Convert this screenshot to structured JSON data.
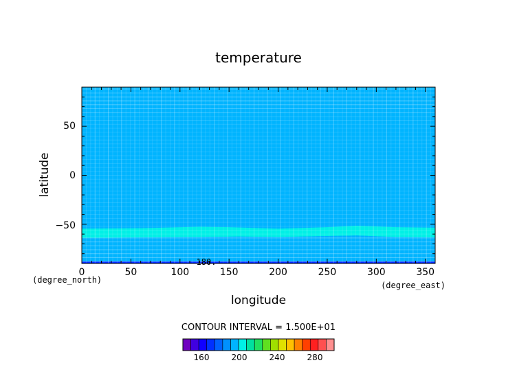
{
  "chart_data": {
    "type": "heatmap",
    "title": "temperature",
    "xlabel": "longitude",
    "ylabel": "latitude",
    "x_unit": "(degree_east)",
    "y_unit": "(degree_north)",
    "xlim": [
      0,
      360
    ],
    "ylim": [
      -90,
      90
    ],
    "x_ticks": [
      "0",
      "50",
      "100",
      "150",
      "200",
      "250",
      "300",
      "350"
    ],
    "y_ticks": [
      "50",
      "0",
      "−50"
    ],
    "contour_interval_label": "CONTOUR INTERVAL = 1.500E+01",
    "contour_label": "180.",
    "bands": [
      {
        "name": "upper",
        "lat_top": 90,
        "lat_bottom": -53,
        "color": "#00b4ff"
      },
      {
        "name": "band",
        "lat_top": -53,
        "lat_bottom": -64,
        "color": "#00f0e6"
      },
      {
        "name": "lower",
        "lat_top": -64,
        "lat_bottom": -88,
        "color": "#00b4ff"
      },
      {
        "name": "edge",
        "lat_top": -88,
        "lat_bottom": -90,
        "color": "#0028ff"
      }
    ],
    "band_boundary_top": [
      [
        0,
        -54.5
      ],
      [
        60,
        -54
      ],
      [
        120,
        -52.5
      ],
      [
        150,
        -53
      ],
      [
        200,
        -54.5
      ],
      [
        250,
        -53
      ],
      [
        280,
        -51.5
      ],
      [
        320,
        -53
      ],
      [
        360,
        -53.5
      ]
    ],
    "band_boundary_bottom": [
      [
        0,
        -64
      ],
      [
        60,
        -63.5
      ],
      [
        120,
        -63
      ],
      [
        160,
        -62.5
      ],
      [
        200,
        -63
      ],
      [
        250,
        -62
      ],
      [
        280,
        -61.5
      ],
      [
        320,
        -63
      ],
      [
        360,
        -63.5
      ]
    ],
    "colorbar": {
      "ticks": [
        "160",
        "200",
        "240",
        "280"
      ],
      "colors": [
        "#7000c0",
        "#4000e0",
        "#1000ff",
        "#0030ff",
        "#0060ff",
        "#0090ff",
        "#00b4ff",
        "#00f0e6",
        "#00e0a0",
        "#20e060",
        "#60e020",
        "#a0e000",
        "#e0e000",
        "#ffc000",
        "#ff8000",
        "#ff4000",
        "#ff2020",
        "#ff5050",
        "#ff9090"
      ]
    }
  }
}
